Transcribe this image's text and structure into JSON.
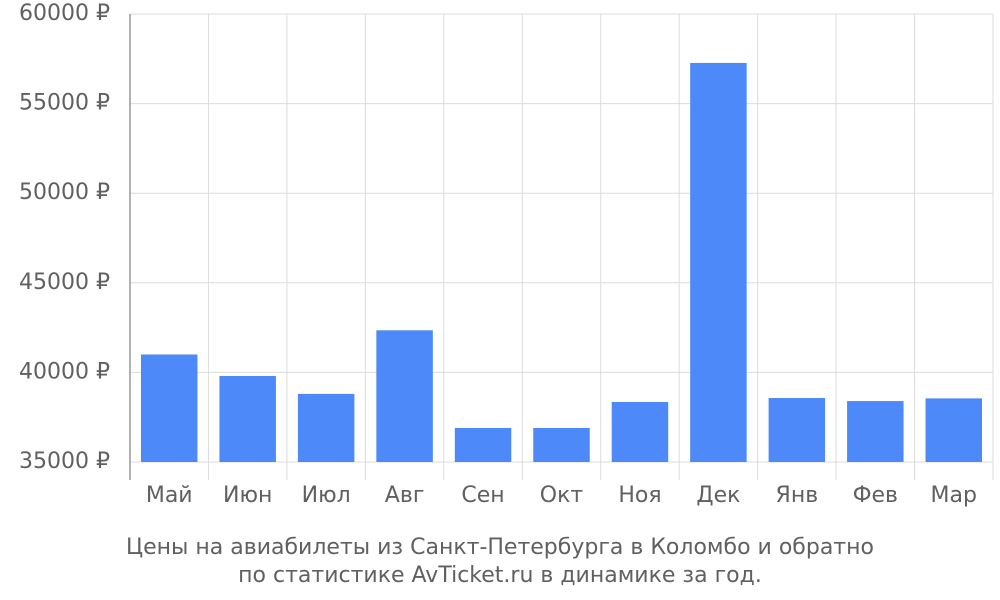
{
  "chart_data": {
    "type": "bar",
    "caption": [
      "Цены на авиабилеты из Санкт-Петербурга в Коломбо и обратно",
      "по статистике AvTicket.ru в динамике за год."
    ],
    "categories": [
      "Май",
      "Июн",
      "Июл",
      "Авг",
      "Сен",
      "Окт",
      "Ноя",
      "Дек",
      "Янв",
      "Фев",
      "Мар"
    ],
    "values": [
      41000,
      39800,
      38800,
      42350,
      36900,
      36900,
      38350,
      57270,
      38570,
      38400,
      38550
    ],
    "color": "#4d89f9",
    "ylim": [
      35000,
      60000
    ],
    "yticks": [
      {
        "value": 35000,
        "label": "35000 ₽"
      },
      {
        "value": 40000,
        "label": "40000 ₽"
      },
      {
        "value": 45000,
        "label": "45000 ₽"
      },
      {
        "value": 50000,
        "label": "50000 ₽"
      },
      {
        "value": 55000,
        "label": "55000 ₽"
      },
      {
        "value": 60000,
        "label": "60000 ₽"
      }
    ],
    "grid": true
  }
}
